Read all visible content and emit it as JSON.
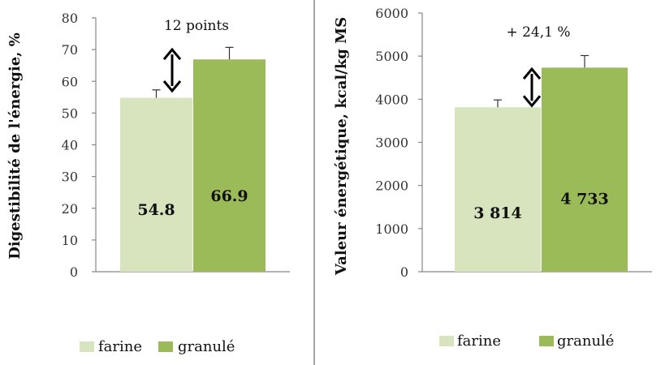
{
  "chart_data": [
    {
      "type": "bar",
      "ylabel": "Digestibilité de l'énergie, %",
      "ylim": [
        0,
        80
      ],
      "yticks": [
        0,
        10,
        20,
        30,
        40,
        50,
        60,
        70,
        80
      ],
      "series": [
        {
          "name": "farine",
          "value": 54.8,
          "label": "54.8",
          "error": 2.5,
          "color": "#d7e4bd"
        },
        {
          "name": "granulé",
          "value": 66.9,
          "label": "66.9",
          "error": 3.8,
          "color": "#9bbb59"
        }
      ],
      "annotation": "12 points",
      "grid": false,
      "legend": "bottom"
    },
    {
      "type": "bar",
      "ylabel": "Valeur énergétique, kcal/kg MS",
      "ylim": [
        0,
        6000
      ],
      "yticks": [
        0,
        1000,
        2000,
        3000,
        4000,
        5000,
        6000
      ],
      "series": [
        {
          "name": "farine",
          "value": 3814,
          "label": "3 814",
          "error": 170,
          "color": "#d7e4bd"
        },
        {
          "name": "granulé",
          "value": 4733,
          "label": "4 733",
          "error": 280,
          "color": "#9bbb59"
        }
      ],
      "annotation": "+ 24,1 %",
      "grid": false,
      "legend": "bottom"
    }
  ]
}
